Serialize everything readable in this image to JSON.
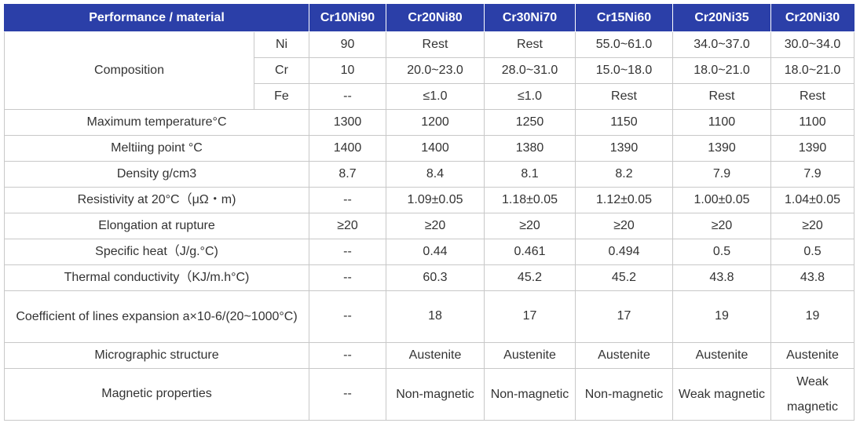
{
  "header": {
    "corner": "Performance / material",
    "materials": [
      "Cr10Ni90",
      "Cr20Ni80",
      "Cr30Ni70",
      "Cr15Ni60",
      "Cr20Ni35",
      "Cr20Ni30"
    ]
  },
  "composition": {
    "label": "Composition",
    "rows": [
      {
        "element": "Ni",
        "values": [
          "90",
          "Rest",
          "Rest",
          "55.0~61.0",
          "34.0~37.0",
          "30.0~34.0"
        ]
      },
      {
        "element": "Cr",
        "values": [
          "10",
          "20.0~23.0",
          "28.0~31.0",
          "15.0~18.0",
          "18.0~21.0",
          "18.0~21.0"
        ]
      },
      {
        "element": "Fe",
        "values": [
          "--",
          "≤1.0",
          "≤1.0",
          "Rest",
          "Rest",
          "Rest"
        ]
      }
    ]
  },
  "properties": [
    {
      "label": "Maximum temperature°C",
      "values": [
        "1300",
        "1200",
        "1250",
        "1150",
        "1100",
        "1100"
      ]
    },
    {
      "label": "Meltiing point °C",
      "values": [
        "1400",
        "1400",
        "1380",
        "1390",
        "1390",
        "1390"
      ]
    },
    {
      "label": "Density g/cm3",
      "values": [
        "8.7",
        "8.4",
        "8.1",
        "8.2",
        "7.9",
        "7.9"
      ]
    },
    {
      "label": "Resistivity at 20°C（μΩ・m)",
      "values": [
        "--",
        "1.09±0.05",
        "1.18±0.05",
        "1.12±0.05",
        "1.00±0.05",
        "1.04±0.05"
      ]
    },
    {
      "label": "Elongation at rupture",
      "values": [
        "≥20",
        "≥20",
        "≥20",
        "≥20",
        "≥20",
        "≥20"
      ]
    },
    {
      "label": "Specific heat（J/g.°C)",
      "values": [
        "--",
        "0.44",
        "0.461",
        "0.494",
        "0.5",
        "0.5"
      ]
    },
    {
      "label": "Thermal conductivity（KJ/m.h°C)",
      "values": [
        "--",
        "60.3",
        "45.2",
        "45.2",
        "43.8",
        "43.8"
      ]
    },
    {
      "label": "Coefficient of lines expansion a×10-6/(20~1000°C)",
      "values": [
        "--",
        "18",
        "17",
        "17",
        "19",
        "19"
      ],
      "tall": true
    },
    {
      "label": "Micrographic structure",
      "values": [
        "--",
        "Austenite",
        "Austenite",
        "Austenite",
        "Austenite",
        "Austenite"
      ]
    },
    {
      "label": "Magnetic properties",
      "values": [
        "--",
        "Non-magnetic",
        "Non-magnetic",
        "Non-magnetic",
        "Weak magnetic",
        "Weak magnetic"
      ],
      "tall": true
    }
  ]
}
